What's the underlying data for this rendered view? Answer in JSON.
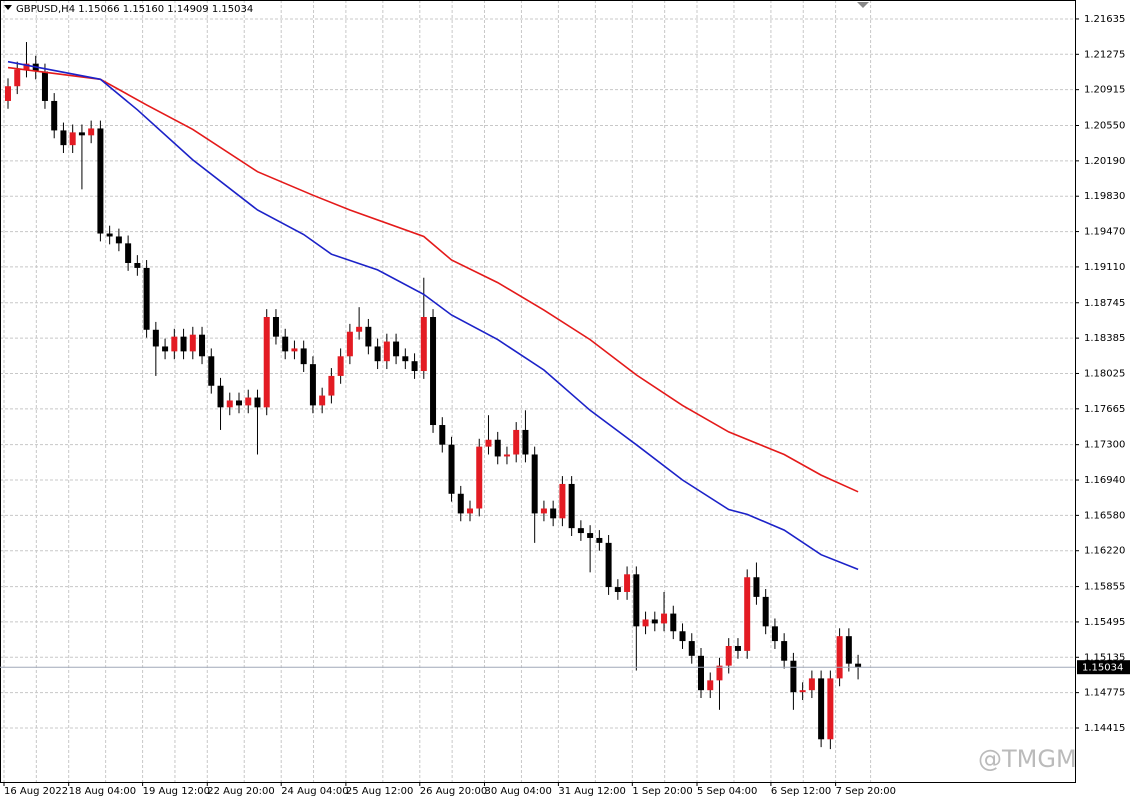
{
  "chart_data": {
    "type": "candlestick",
    "title": "GBPUSD,H4  1.15066 1.15160 1.14909 1.15034",
    "watermark": "@TMGM",
    "up_color": "#e31b23",
    "down_color": "#000000",
    "open": [
      1.208,
      1.2095,
      1.2112,
      1.2118,
      1.211,
      1.208,
      1.205,
      1.2035,
      1.2048,
      1.2045,
      1.2052,
      1.1945,
      1.1942,
      1.1935,
      1.1915,
      1.191,
      1.1847,
      1.183,
      1.1825,
      1.184,
      1.1825,
      1.1842,
      1.182,
      1.179,
      1.1768,
      1.1775,
      1.177,
      1.1778,
      1.1768,
      1.186,
      1.184,
      1.1825,
      1.1828,
      1.1812,
      1.177,
      1.178,
      1.18,
      1.182,
      1.1845,
      1.185,
      1.183,
      1.1815,
      1.1835,
      1.182,
      1.1815,
      1.1805,
      1.186,
      1.175,
      1.173,
      1.168,
      1.166,
      1.1665,
      1.1728,
      1.1735,
      1.1718,
      1.172,
      1.1745,
      1.172,
      1.166,
      1.1665,
      1.1655,
      1.169,
      1.1645,
      1.164,
      1.1635,
      1.163,
      1.1585,
      1.158,
      1.1598,
      1.1545,
      1.1552,
      1.1548,
      1.1558,
      1.154,
      1.153,
      1.1515,
      1.148,
      1.149,
      1.1505,
      1.1525,
      1.152,
      1.1595,
      1.1575,
      1.1545,
      1.153,
      1.151,
      1.1478,
      1.148,
      1.1492,
      1.143,
      1.1492,
      1.1535,
      1.1507
    ],
    "high": [
      1.2103,
      1.212,
      1.214,
      1.2126,
      1.2118,
      1.2088,
      1.2058,
      1.2056,
      1.2056,
      1.206,
      1.206,
      1.1953,
      1.195,
      1.1943,
      1.1923,
      1.1918,
      1.1855,
      1.1838,
      1.1848,
      1.1848,
      1.185,
      1.185,
      1.1828,
      1.1798,
      1.1783,
      1.1783,
      1.1786,
      1.1786,
      1.1868,
      1.1868,
      1.1848,
      1.1836,
      1.1836,
      1.182,
      1.1788,
      1.1808,
      1.1828,
      1.1853,
      1.187,
      1.1858,
      1.1838,
      1.1843,
      1.1843,
      1.1828,
      1.1823,
      1.19,
      1.1868,
      1.1758,
      1.1738,
      1.1688,
      1.1673,
      1.1736,
      1.176,
      1.1743,
      1.1728,
      1.1753,
      1.1765,
      1.1728,
      1.1673,
      1.1673,
      1.1698,
      1.1698,
      1.1653,
      1.1648,
      1.1643,
      1.1638,
      1.1593,
      1.1606,
      1.1606,
      1.156,
      1.156,
      1.158,
      1.1566,
      1.1548,
      1.1538,
      1.1523,
      1.1498,
      1.1513,
      1.1533,
      1.1533,
      1.1603,
      1.161,
      1.1583,
      1.1553,
      1.1538,
      1.1518,
      1.1488,
      1.15,
      1.15,
      1.15,
      1.1543,
      1.1543,
      1.1516
    ],
    "low": [
      1.2072,
      1.2087,
      1.2104,
      1.2102,
      1.2072,
      1.2042,
      1.2027,
      1.2027,
      1.199,
      1.2037,
      1.1937,
      1.1934,
      1.1927,
      1.1907,
      1.1902,
      1.1839,
      1.18,
      1.1817,
      1.1817,
      1.1817,
      1.1817,
      1.1812,
      1.1782,
      1.1745,
      1.176,
      1.1762,
      1.1762,
      1.172,
      1.176,
      1.1832,
      1.1817,
      1.1817,
      1.1804,
      1.1762,
      1.1762,
      1.1772,
      1.1792,
      1.1812,
      1.1837,
      1.1822,
      1.1807,
      1.1807,
      1.1812,
      1.1807,
      1.1797,
      1.1797,
      1.1742,
      1.1722,
      1.1672,
      1.1652,
      1.1652,
      1.1657,
      1.172,
      1.171,
      1.171,
      1.1712,
      1.1712,
      1.163,
      1.1652,
      1.1647,
      1.1647,
      1.1637,
      1.1632,
      1.16,
      1.1622,
      1.1577,
      1.1572,
      1.1572,
      1.15,
      1.1537,
      1.154,
      1.154,
      1.1532,
      1.1522,
      1.1507,
      1.1472,
      1.1472,
      1.146,
      1.1497,
      1.1512,
      1.1512,
      1.1567,
      1.1537,
      1.1522,
      1.1502,
      1.146,
      1.147,
      1.1472,
      1.1422,
      1.142,
      1.1484,
      1.1499,
      1.1491
    ],
    "close": [
      1.2095,
      1.2112,
      1.2118,
      1.211,
      1.208,
      1.205,
      1.2035,
      1.2048,
      1.2045,
      1.2052,
      1.1945,
      1.1942,
      1.1935,
      1.1915,
      1.191,
      1.1847,
      1.183,
      1.1825,
      1.184,
      1.1825,
      1.1842,
      1.182,
      1.179,
      1.1768,
      1.1775,
      1.177,
      1.1778,
      1.1768,
      1.186,
      1.184,
      1.1825,
      1.1828,
      1.1812,
      1.177,
      1.178,
      1.18,
      1.182,
      1.1845,
      1.185,
      1.183,
      1.1815,
      1.1835,
      1.182,
      1.1815,
      1.1805,
      1.186,
      1.175,
      1.173,
      1.168,
      1.166,
      1.1665,
      1.1728,
      1.1735,
      1.1718,
      1.172,
      1.1745,
      1.172,
      1.166,
      1.1665,
      1.1655,
      1.169,
      1.1645,
      1.164,
      1.1635,
      1.163,
      1.1585,
      1.158,
      1.1598,
      1.1545,
      1.1552,
      1.1548,
      1.1558,
      1.154,
      1.153,
      1.1515,
      1.148,
      1.149,
      1.1505,
      1.1525,
      1.152,
      1.1595,
      1.1575,
      1.1545,
      1.153,
      1.151,
      1.1478,
      1.148,
      1.1492,
      1.143,
      1.1492,
      1.1535,
      1.1507,
      1.1503
    ],
    "series": [
      {
        "color": "#e41a1a",
        "x": [
          0,
          10,
          15,
          20,
          27,
          33,
          37,
          45,
          48,
          53,
          58,
          63,
          68,
          73,
          78,
          84,
          88,
          92
        ],
        "values": [
          1.2114,
          1.2102,
          1.2076,
          1.2051,
          1.2008,
          1.1984,
          1.1969,
          1.1942,
          1.1918,
          1.1895,
          1.1867,
          1.1837,
          1.1801,
          1.177,
          1.1743,
          1.172,
          1.1699,
          1.1682
        ]
      },
      {
        "color": "#1c22c8",
        "x": [
          0,
          10,
          14,
          20,
          27,
          32,
          35,
          40,
          45,
          48,
          53,
          58,
          63,
          68,
          73,
          78,
          80,
          84,
          88,
          92
        ],
        "values": [
          1.212,
          1.2102,
          1.2071,
          1.202,
          1.1969,
          1.1944,
          1.1924,
          1.1908,
          1.1883,
          1.1862,
          1.1837,
          1.1806,
          1.1765,
          1.173,
          1.1694,
          1.1664,
          1.1659,
          1.1643,
          1.1618,
          1.1603
        ]
      }
    ],
    "ylim": [
      1.13865,
      1.21828
    ],
    "yticks": [
      1.21635,
      1.21275,
      1.20915,
      {
        "value": 1.2055,
        "label": "1.20550"
      },
      {
        "value": 1.2019,
        "label": "1.20190"
      },
      {
        "value": 1.1983,
        "label": "1.19830"
      },
      {
        "value": 1.1947,
        "label": "1.19470"
      },
      {
        "value": 1.1911,
        "label": "1.19110"
      },
      1.18745,
      1.18385,
      1.18025,
      1.17665,
      {
        "value": 1.173,
        "label": "1.17300"
      },
      {
        "value": 1.1694,
        "label": "1.16940"
      },
      {
        "value": 1.1658,
        "label": "1.16580"
      },
      {
        "value": 1.1622,
        "label": "1.16220"
      },
      1.15855,
      1.15495,
      1.15135,
      1.14775,
      1.14415
    ],
    "xticks": [
      {
        "value": 0,
        "label": "16 Aug 2022"
      },
      {
        "value": 7,
        "label": "18 Aug 04:00"
      },
      {
        "value": 15,
        "label": "19 Aug 12:00"
      },
      {
        "value": 22,
        "label": "22 Aug 20:00"
      },
      {
        "value": 30,
        "label": "24 Aug 04:00"
      },
      {
        "value": 37,
        "label": "25 Aug 12:00"
      },
      {
        "value": 45,
        "label": "26 Aug 20:00"
      },
      {
        "value": 52,
        "label": "30 Aug 04:00"
      },
      {
        "value": 60,
        "label": "31 Aug 12:00"
      },
      {
        "value": 68,
        "label": "1 Sep 20:00"
      },
      {
        "value": 75,
        "label": "5 Sep 04:00"
      },
      {
        "value": 83,
        "label": "6 Sep 12:00"
      },
      {
        "value": 90,
        "label": "7 Sep 20:00"
      }
    ],
    "last_price": {
      "value": 1.15034,
      "label": "1.15034"
    },
    "grid": true
  }
}
